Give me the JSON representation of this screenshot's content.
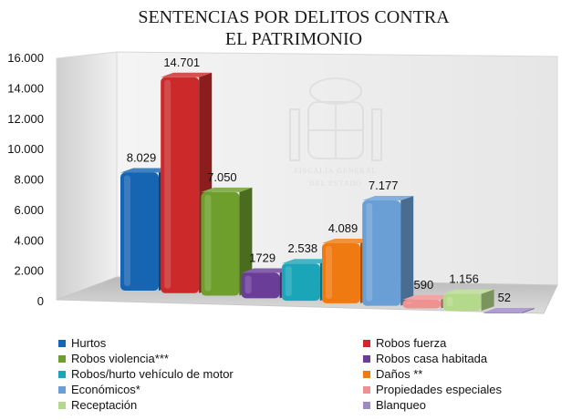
{
  "chart_data": {
    "type": "bar",
    "title_lines": [
      "SENTENCIAS POR DELITOS CONTRA",
      "EL PATRIMONIO"
    ],
    "ylim": [
      0,
      16000
    ],
    "yticks": [
      0,
      2000,
      4000,
      6000,
      8000,
      10000,
      12000,
      14000,
      16000
    ],
    "ytick_labels": [
      "0",
      "2.000",
      "4.000",
      "6.000",
      "8.000",
      "10.000",
      "12.000",
      "14.000",
      "16.000"
    ],
    "grid": false,
    "legend_position": "bottom",
    "series": [
      {
        "name": "Hurtos",
        "value": 8029,
        "label": "8.029",
        "color": "#1565b3"
      },
      {
        "name": "Robos fuerza",
        "value": 14701,
        "label": "14.701",
        "color": "#cc2a2a"
      },
      {
        "name": "Robos violencia***",
        "value": 7050,
        "label": "7.050",
        "color": "#6e9f2c"
      },
      {
        "name": "Robos casa habitada",
        "value": 1729,
        "label": "1729",
        "color": "#6a3d99"
      },
      {
        "name": "Robos/hurto vehículo de motor",
        "value": 2538,
        "label": "2.538",
        "color": "#1aa5b8"
      },
      {
        "name": "Daños **",
        "value": 4089,
        "label": "4.089",
        "color": "#f07a12"
      },
      {
        "name": "Económicos*",
        "value": 7177,
        "label": "7.177",
        "color": "#6a9fd6"
      },
      {
        "name": "Propiedades especiales",
        "value": 590,
        "label": "590",
        "color": "#ef9191"
      },
      {
        "name": "Receptación",
        "value": 1156,
        "label": "1.156",
        "color": "#b5d98a"
      },
      {
        "name": "Blanqueo",
        "value": 52,
        "label": "52",
        "color": "#9d8ac6"
      }
    ]
  },
  "watermark": {
    "line1": "FISCALÍA GENERAL",
    "line2": "DEL ESTADO"
  }
}
